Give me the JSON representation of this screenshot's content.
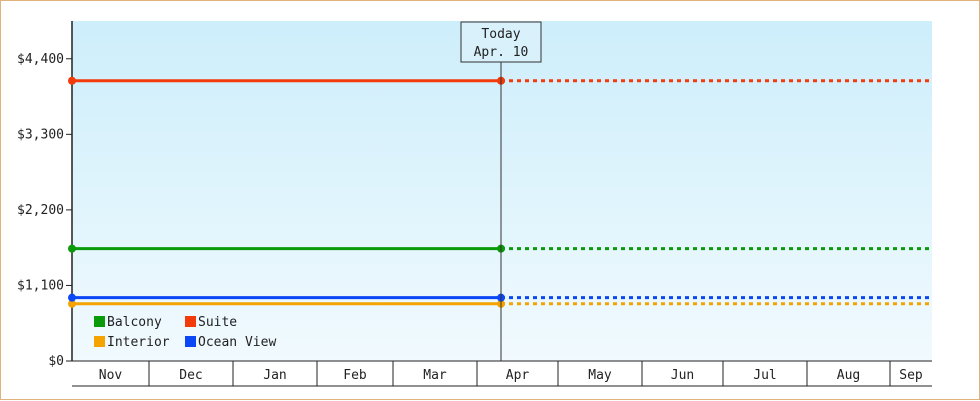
{
  "chart_data": {
    "type": "line",
    "x": [
      "Nov",
      "Dec",
      "Jan",
      "Feb",
      "Mar",
      "Apr",
      "May",
      "Jun",
      "Jul",
      "Aug",
      "Sep"
    ],
    "y_ticks": [
      "$0",
      "$1,100",
      "$2,200",
      "$3,300",
      "$4,400"
    ],
    "ylim": [
      0,
      4950
    ],
    "today_marker": {
      "line1": "Today",
      "line2": "Apr. 10"
    },
    "legend": {
      "position": "bottom-left"
    },
    "series": [
      {
        "name": "Balcony",
        "color": "#0a9a0a",
        "value": 1636
      },
      {
        "name": "Suite",
        "color": "#f23a0a",
        "value": 4080
      },
      {
        "name": "Interior",
        "color": "#f5a300",
        "value": 833
      },
      {
        "name": "Ocean View",
        "color": "#0b47f5",
        "value": 922
      }
    ]
  }
}
